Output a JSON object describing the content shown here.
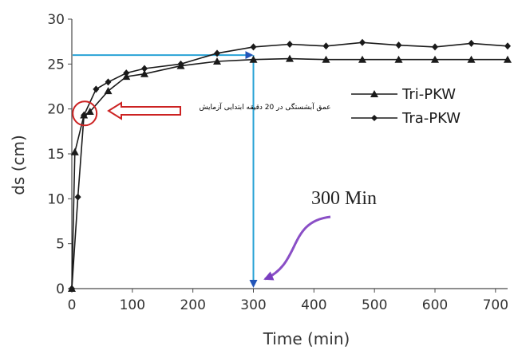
{
  "chart_data": {
    "type": "line",
    "xlabel": "Time (min)",
    "ylabel": "ds (cm)",
    "xlim": [
      0,
      720
    ],
    "ylim": [
      0,
      30
    ],
    "xticks": [
      "0",
      "100",
      "200",
      "300",
      "400",
      "500",
      "600",
      "700"
    ],
    "yticks": [
      "0",
      "5",
      "10",
      "15",
      "20",
      "25",
      "30"
    ],
    "grid": false,
    "legend_position": "right",
    "series": [
      {
        "name": "Tri-PKW",
        "marker": "triangle",
        "color": "#1a1a1a",
        "x": [
          0,
          5,
          20,
          30,
          60,
          90,
          120,
          180,
          240,
          300,
          360,
          420,
          480,
          540,
          600,
          660,
          720
        ],
        "y": [
          0,
          15.2,
          19.3,
          19.7,
          22.0,
          23.6,
          23.9,
          24.8,
          25.3,
          25.5,
          25.6,
          25.5,
          25.5,
          25.5,
          25.5,
          25.5,
          25.5
        ]
      },
      {
        "name": "Tra-PKW",
        "marker": "diamond",
        "color": "#1a1a1a",
        "x": [
          0,
          10,
          20,
          40,
          60,
          90,
          120,
          180,
          240,
          300,
          360,
          420,
          480,
          540,
          600,
          660,
          720
        ],
        "y": [
          0,
          10.2,
          19.3,
          22.2,
          23.0,
          24.0,
          24.5,
          25.0,
          26.2,
          26.9,
          27.2,
          27.0,
          27.4,
          27.1,
          26.9,
          27.3,
          27.0
        ]
      }
    ],
    "annotations": {
      "persian_note": "عمق آبشستگی در 20 دقیقه ابتدایی آزمایش",
      "callout_label": "300 Min",
      "reference_y": 26,
      "reference_x": 300,
      "circle_center_x": 20,
      "circle_center_y": 19.5
    }
  },
  "colors": {
    "axis": "#4a4a4a",
    "series": "#1a1a1a",
    "guide_arrow": "#29a3d6",
    "guide_arrow_head": "#2255b8",
    "highlight": "#cc2222",
    "callout_arrow": "#8a4fc6"
  }
}
